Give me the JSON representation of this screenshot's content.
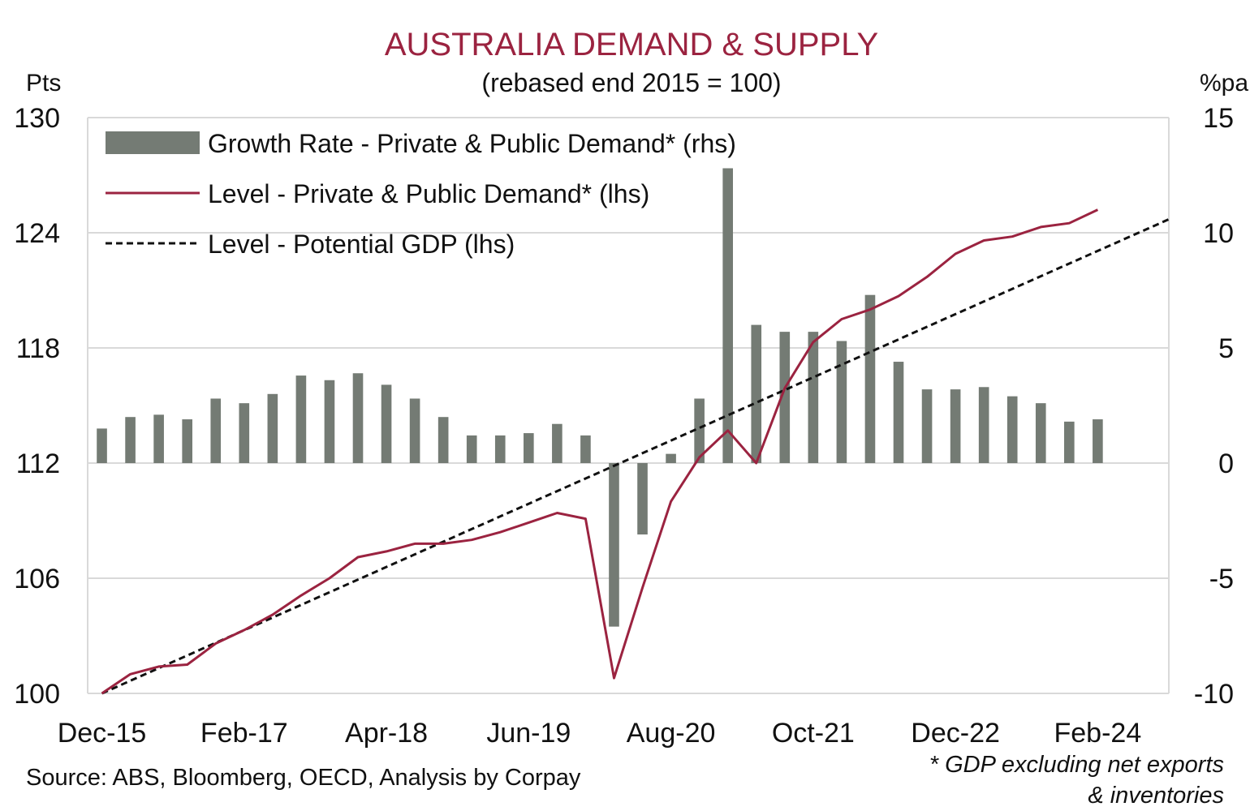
{
  "chart_data": {
    "type": "bar+line",
    "title": "AUSTRALIA DEMAND & SUPPLY",
    "subtitle": "(rebased end 2015 = 100)",
    "left_axis": {
      "label": "Pts",
      "min": 100,
      "max": 130,
      "ticks": [
        "130",
        "124",
        "118",
        "112",
        "106",
        "100"
      ]
    },
    "right_axis": {
      "label": "%pa",
      "min": -10,
      "max": 15,
      "ticks": [
        "15",
        "10",
        "5",
        "0",
        "-5",
        "-10"
      ]
    },
    "x_tick_labels": [
      "Dec-15",
      "Feb-17",
      "Apr-18",
      "Jun-19",
      "Aug-20",
      "Oct-21",
      "Dec-22",
      "Feb-24"
    ],
    "x_tick_index": [
      0,
      5,
      10,
      15,
      20,
      25,
      30,
      35
    ],
    "n_periods": 38,
    "bars": {
      "name": "Growth Rate - Private & Public Demand* (rhs)",
      "axis": "right",
      "color": "#747b74",
      "start_index": 0,
      "values": [
        1.5,
        2.0,
        2.1,
        1.9,
        2.8,
        2.6,
        3.0,
        3.8,
        3.6,
        3.9,
        3.4,
        2.8,
        2.0,
        1.2,
        1.2,
        1.3,
        1.7,
        1.2,
        -7.1,
        -3.1,
        0.4,
        2.8,
        12.8,
        6.0,
        5.7,
        5.7,
        5.3,
        7.3,
        4.4,
        3.2,
        3.2,
        3.3,
        2.9,
        2.6,
        1.8,
        1.9
      ]
    },
    "demand_line": {
      "name": "Level - Private & Public Demand* (lhs)",
      "axis": "left",
      "color": "#9b2340",
      "start_index": 0,
      "values": [
        100.0,
        101.0,
        101.4,
        101.5,
        102.6,
        103.3,
        104.1,
        105.1,
        106.0,
        107.1,
        107.4,
        107.8,
        107.8,
        108.0,
        108.4,
        108.9,
        109.4,
        109.1,
        100.8,
        105.5,
        110.0,
        112.3,
        113.7,
        112.0,
        115.9,
        118.3,
        119.5,
        120.0,
        120.7,
        121.7,
        122.9,
        123.6,
        123.8,
        124.3,
        124.5,
        125.2
      ]
    },
    "potential_line": {
      "name": "Level - Potential GDP (lhs)",
      "axis": "left",
      "color": "#111111",
      "dashed": true,
      "from_index": 0,
      "to_index": 37.5,
      "from_value": 100.0,
      "to_value": 124.7
    },
    "legend": {
      "placement": "top-left"
    },
    "grid": {
      "horizontal": true,
      "vertical": false
    },
    "source": "Source: ABS, Bloomberg, OECD, Analysis by Corpay",
    "footnote_line1": "* GDP excluding net exports",
    "footnote_line2": "& inventories"
  },
  "colors": {
    "title": "#9b2340",
    "grid": "#d9d9d9",
    "text": "#111111"
  }
}
